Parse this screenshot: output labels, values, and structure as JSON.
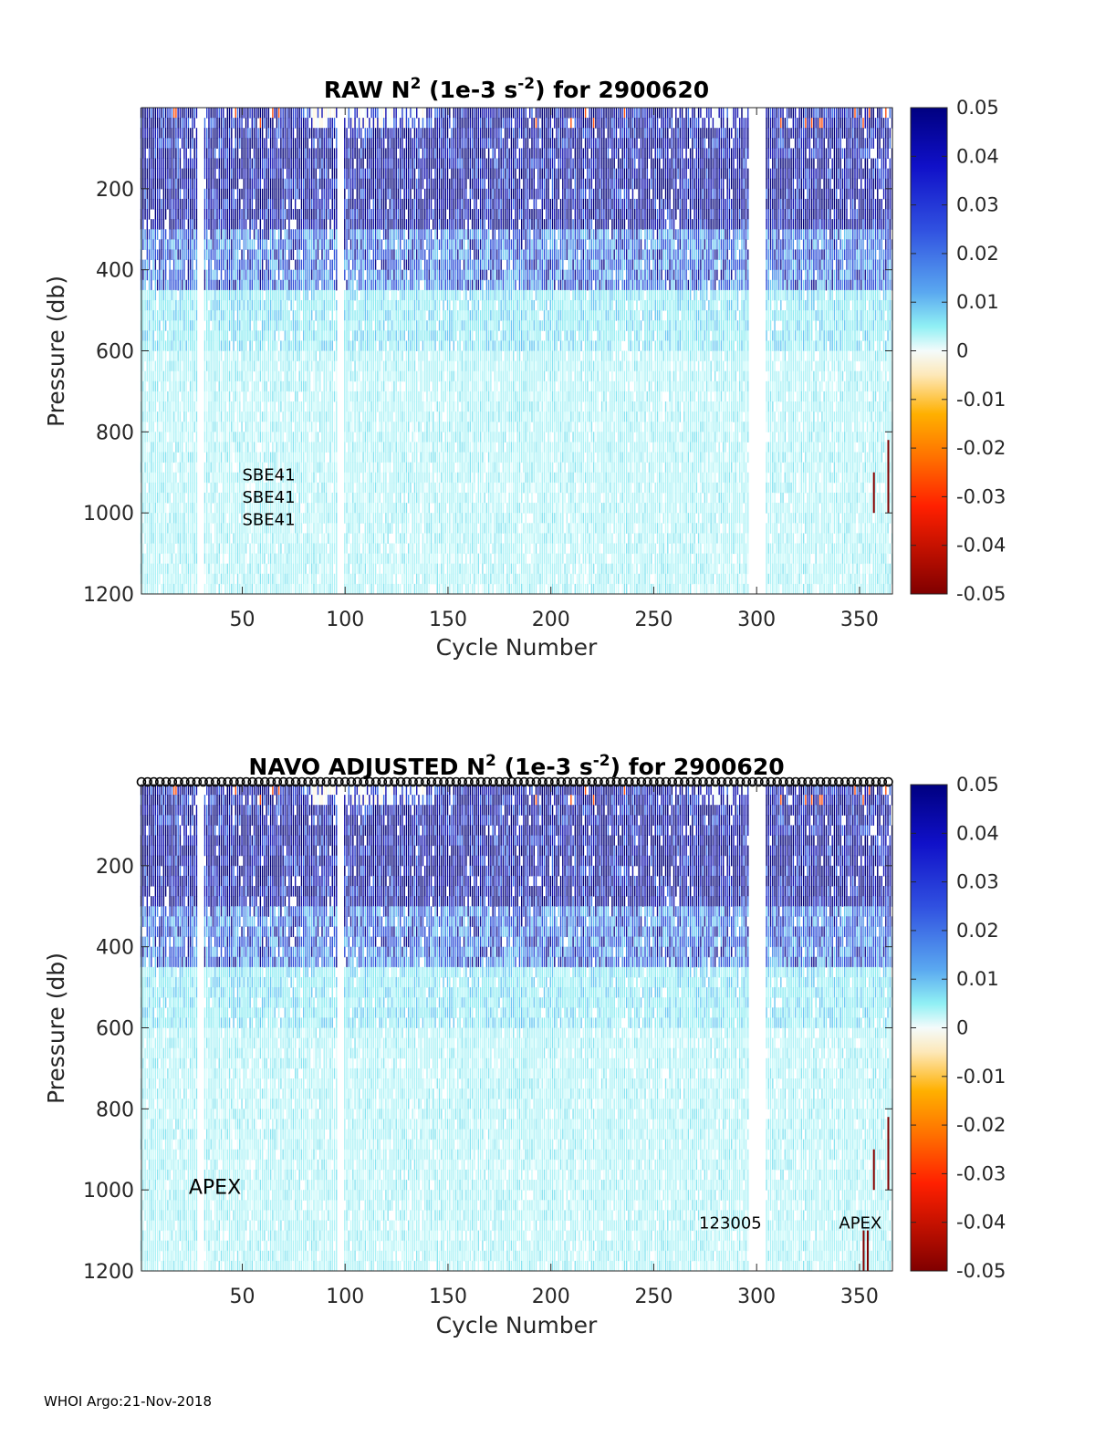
{
  "footer": "WHOI Argo:21-Nov-2018",
  "chart_data": [
    {
      "type": "heatmap",
      "title": {
        "main": "RAW N",
        "sup": "2",
        "mid": " (1e-3 s",
        "sup2": "-2",
        "end": ") for 2900620"
      },
      "xlabel": "Cycle Number",
      "ylabel": "Pressure (db)",
      "xlim": [
        1,
        366
      ],
      "ylim": [
        1200,
        0
      ],
      "xticks": [
        50,
        100,
        150,
        200,
        250,
        300,
        350
      ],
      "yticks": [
        200,
        400,
        600,
        800,
        1000,
        1200
      ],
      "colorbar": {
        "range": [
          -0.05,
          0.05
        ],
        "ticks": [
          "0.05",
          "0.04",
          "0.03",
          "0.02",
          "0.01",
          "0",
          "-0.01",
          "-0.02",
          "-0.03",
          "-0.04",
          "-0.05"
        ],
        "colormap": "jet-like"
      },
      "gap_cycles": [
        29,
        30,
        31,
        97,
        98,
        99,
        297,
        298,
        299,
        300,
        301,
        302,
        303,
        304
      ],
      "annotations": [
        {
          "text": "SBE41",
          "x": 50,
          "y": 920
        },
        {
          "text": "SBE41",
          "x": 50,
          "y": 975
        },
        {
          "text": "SBE41",
          "x": 50,
          "y": 1030
        }
      ],
      "top_markers": false
    },
    {
      "type": "heatmap",
      "title": {
        "main": "NAVO  ADJUSTED N",
        "sup": "2",
        "mid": " (1e-3 s",
        "sup2": "-2",
        "end": ") for 2900620"
      },
      "xlabel": "Cycle Number",
      "ylabel": "Pressure (db)",
      "xlim": [
        1,
        366
      ],
      "ylim": [
        1200,
        0
      ],
      "xticks": [
        50,
        100,
        150,
        200,
        250,
        300,
        350
      ],
      "yticks": [
        200,
        400,
        600,
        800,
        1000,
        1200
      ],
      "colorbar": {
        "range": [
          -0.05,
          0.05
        ],
        "ticks": [
          "0.05",
          "0.04",
          "0.03",
          "0.02",
          "0.01",
          "0",
          "-0.01",
          "-0.02",
          "-0.03",
          "-0.04",
          "-0.05"
        ],
        "colormap": "jet-like"
      },
      "gap_cycles": [
        29,
        30,
        31,
        97,
        98,
        99,
        297,
        298,
        299,
        300,
        301,
        302,
        303,
        304
      ],
      "annotations": [
        {
          "text": "APEX",
          "x": 24,
          "y": 1010,
          "size": "large"
        },
        {
          "text": "123005",
          "x": 272,
          "y": 1095
        },
        {
          "text": "APEX",
          "x": 340,
          "y": 1095
        }
      ],
      "top_markers": true
    }
  ]
}
